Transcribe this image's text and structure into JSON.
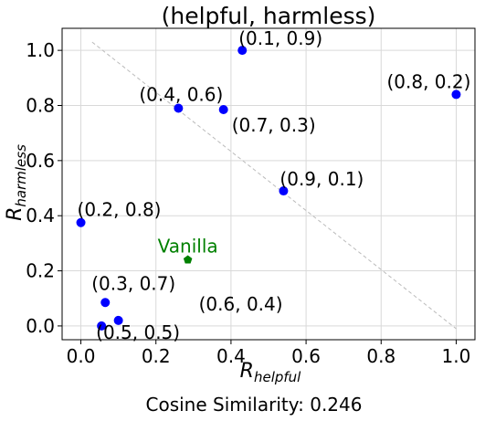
{
  "chart_data": {
    "type": "scatter",
    "title": "(helpful, harmless)",
    "xlabel": {
      "main": "R",
      "sub": "helpful"
    },
    "ylabel": {
      "main": "R",
      "sub": "harmless"
    },
    "xlim": [
      -0.05,
      1.05
    ],
    "ylim": [
      -0.05,
      1.08
    ],
    "xticks": [
      "0.0",
      "0.2",
      "0.4",
      "0.6",
      "0.8",
      "1.0"
    ],
    "xtick_values": [
      0.0,
      0.2,
      0.4,
      0.6,
      0.8,
      1.0
    ],
    "yticks": [
      "0.0",
      "0.2",
      "0.4",
      "0.6",
      "0.8",
      "1.0"
    ],
    "ytick_values": [
      0.0,
      0.2,
      0.4,
      0.6,
      0.8,
      1.0
    ],
    "grid": true,
    "point_color": "#0000ff",
    "vanilla_color": "#008000",
    "reference_line": {
      "x": [
        0.03,
        1.0
      ],
      "y": [
        1.03,
        -0.01
      ],
      "color": "#bbbbbb",
      "style": "dashed"
    },
    "points": [
      {
        "label": "(0.1, 0.9)",
        "x": 0.43,
        "y": 1.0
      },
      {
        "label": "(0.8, 0.2)",
        "x": 1.0,
        "y": 0.84
      },
      {
        "label": "(0.4, 0.6)",
        "x": 0.26,
        "y": 0.79
      },
      {
        "label": "(0.7, 0.3)",
        "x": 0.38,
        "y": 0.785
      },
      {
        "label": "(0.9, 0.1)",
        "x": 0.54,
        "y": 0.49
      },
      {
        "label": "(0.2, 0.8)",
        "x": 0.0,
        "y": 0.375
      },
      {
        "label": "(0.3, 0.7)",
        "x": 0.065,
        "y": 0.085
      },
      {
        "label": "(0.6, 0.4)",
        "x": 0.1,
        "y": 0.02
      },
      {
        "label": "(0.5, 0.5)",
        "x": 0.055,
        "y": 0.0
      }
    ],
    "vanilla": {
      "label": "Vanilla",
      "x": 0.285,
      "y": 0.24
    }
  },
  "footer": "Cosine Similarity: 0.246"
}
